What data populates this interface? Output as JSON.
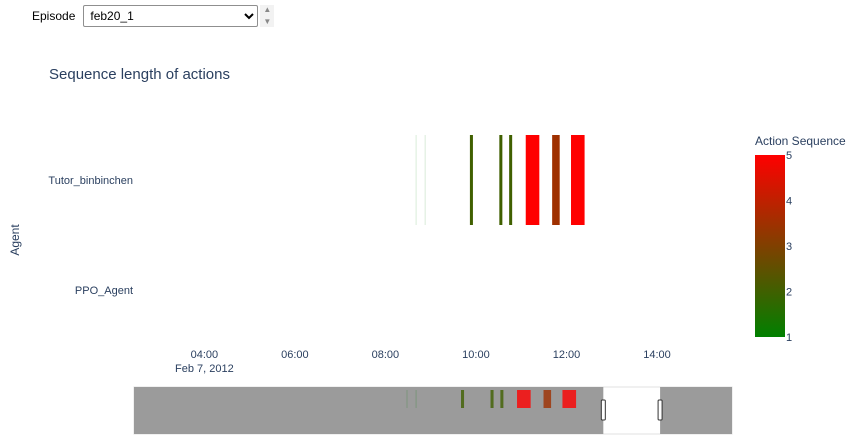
{
  "episode": {
    "label": "Episode",
    "selected": "feb20_1",
    "options": [
      "feb20_1"
    ],
    "up_icon": "triangle-up-icon",
    "down_icon": "triangle-down-icon"
  },
  "chart_data": {
    "type": "timeline",
    "title": "Sequence length of actions",
    "xlabel": "",
    "ylabel": "Agent",
    "y_categories": [
      "Tutor_binbinchen",
      "PPO_Agent"
    ],
    "x_ticks": [
      {
        "value": "04:00",
        "label": "04:00",
        "sublabel": "Feb 7, 2012"
      },
      {
        "value": "06:00",
        "label": "06:00",
        "sublabel": ""
      },
      {
        "value": "08:00",
        "label": "08:00",
        "sublabel": ""
      },
      {
        "value": "10:00",
        "label": "10:00",
        "sublabel": ""
      },
      {
        "value": "12:00",
        "label": "12:00",
        "sublabel": ""
      },
      {
        "value": "14:00",
        "label": "14:00",
        "sublabel": ""
      }
    ],
    "xlim": [
      "02:40",
      "15:50"
    ],
    "series": [
      {
        "agent": "Tutor_binbinchen",
        "bars": [
          {
            "start": "08:40",
            "end": "08:41",
            "value": 1
          },
          {
            "start": "08:52",
            "end": "08:53",
            "value": 1
          },
          {
            "start": "09:52",
            "end": "09:56",
            "value": 2
          },
          {
            "start": "10:31",
            "end": "10:35",
            "value": 2
          },
          {
            "start": "10:44",
            "end": "10:48",
            "value": 2
          },
          {
            "start": "11:06",
            "end": "11:24",
            "value": 5
          },
          {
            "start": "11:41",
            "end": "11:51",
            "value": 3.5
          },
          {
            "start": "12:06",
            "end": "12:24",
            "value": 5
          }
        ]
      },
      {
        "agent": "PPO_Agent",
        "bars": []
      }
    ],
    "colorbar": {
      "title": "Action Sequence",
      "min": 1,
      "max": 5,
      "ticks": [
        1,
        2,
        3,
        4,
        5
      ],
      "colorscale": [
        "#008000",
        "#ff0000"
      ]
    },
    "rangeslider": {
      "range": [
        "02:40",
        "15:50"
      ],
      "selected": [
        "13:00",
        "14:15"
      ]
    },
    "colors": {
      "grid": "#ffffff",
      "text": "#2a3f5f",
      "slider_mask": "#9b9b9b"
    }
  }
}
